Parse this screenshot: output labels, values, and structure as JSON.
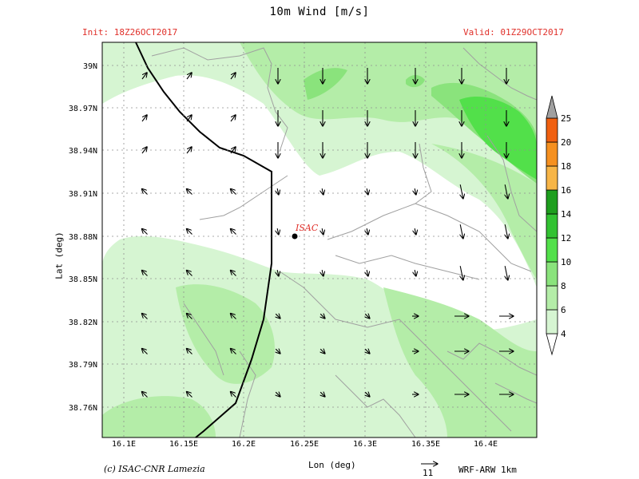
{
  "header": {
    "title": "10m Wind [m/s]",
    "init": "Init: 18Z26OCT2017",
    "valid": "Valid: 01Z29OCT2017"
  },
  "axes": {
    "xlabel": "Lon (deg)",
    "ylabel": "Lat (deg)",
    "x_ticks": [
      "16.1E",
      "16.15E",
      "16.2E",
      "16.25E",
      "16.3E",
      "16.35E",
      "16.4E"
    ],
    "y_ticks": [
      "39N",
      "38.97N",
      "38.94N",
      "38.91N",
      "38.88N",
      "38.85N",
      "38.82N",
      "38.79N",
      "38.76N"
    ]
  },
  "station": {
    "label": "ISAC"
  },
  "colorbar": {
    "levels": [
      "4",
      "6",
      "8",
      "10",
      "12",
      "14",
      "16",
      "18",
      "20",
      "25"
    ],
    "colors": [
      "#ffffff",
      "#d6f5d2",
      "#b4eda8",
      "#8ae37c",
      "#52e04a",
      "#32c232",
      "#1e9e1e",
      "#f7b547",
      "#f59020",
      "#f06010",
      "#a0a0a0"
    ]
  },
  "footer": {
    "copyright": "(c) ISAC-CNR Lamezia",
    "ref_vector": "11",
    "model": "WRF-ARW 1km"
  }
}
